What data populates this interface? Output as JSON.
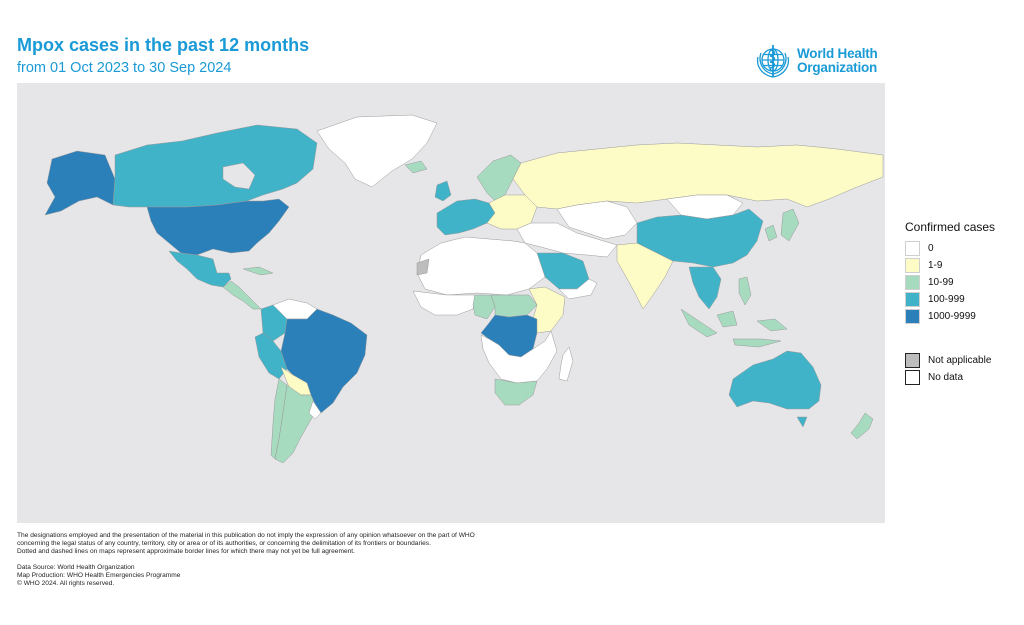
{
  "header": {
    "title": "Mpox cases in the past 12 months",
    "subtitle": "from 01 Oct 2023 to 30 Sep 2024"
  },
  "logo": {
    "line1": "World Health",
    "line2": "Organization",
    "icon": "who-emblem-icon",
    "color": "#1a9ad6"
  },
  "colors": {
    "ocean": "#e6e6e9",
    "c0": "#ffffff",
    "c1_9": "#fdfcc6",
    "c10_99": "#a6dbc0",
    "c100_999": "#40b3c8",
    "c1000_9999": "#2c80ba",
    "not_applicable": "#bdbdbd",
    "no_data": "#ffffff"
  },
  "legend": {
    "title": "Confirmed cases",
    "items": [
      {
        "label": "0",
        "color": "#ffffff"
      },
      {
        "label": "1-9",
        "color": "#fdfcc6"
      },
      {
        "label": "10-99",
        "color": "#a6dbc0"
      },
      {
        "label": "100-999",
        "color": "#40b3c8"
      },
      {
        "label": "1000-9999",
        "color": "#2c80ba"
      }
    ],
    "not_applicable": "Not applicable",
    "no_data": "No data"
  },
  "footer": {
    "disclaimer_1": "The designations employed and the presentation of the material in this publication do not imply the expression of any opinion whatsoever on the part of WHO",
    "disclaimer_2": "concerning the legal status of any country, territory, city or area or of its authorities, or concerning the delimitation of its frontiers or boundaries.",
    "disclaimer_3": "Dotted and dashed lines on maps represent approximate border lines for which there may not yet be full agreement.",
    "source": "Data Source: World Health Organization",
    "production": "Map Production: WHO Health Emergencies Programme",
    "copyright": "© WHO 2024. All rights reserved."
  },
  "map_regions": [
    {
      "name": "greenland",
      "category": "0"
    },
    {
      "name": "canada",
      "category": "100-999"
    },
    {
      "name": "alaska",
      "category": "1000-9999"
    },
    {
      "name": "united-states",
      "category": "1000-9999"
    },
    {
      "name": "mexico",
      "category": "100-999"
    },
    {
      "name": "central-america",
      "category": "10-99"
    },
    {
      "name": "colombia",
      "category": "100-999"
    },
    {
      "name": "venezuela",
      "category": "0"
    },
    {
      "name": "peru",
      "category": "100-999"
    },
    {
      "name": "brazil",
      "category": "1000-9999"
    },
    {
      "name": "bolivia",
      "category": "1-9"
    },
    {
      "name": "argentina",
      "category": "10-99"
    },
    {
      "name": "chile",
      "category": "10-99"
    },
    {
      "name": "uruguay",
      "category": "0"
    },
    {
      "name": "russia",
      "category": "1-9"
    },
    {
      "name": "scandinavia",
      "category": "10-99"
    },
    {
      "name": "western-europe",
      "category": "100-999"
    },
    {
      "name": "eastern-europe",
      "category": "1-9"
    },
    {
      "name": "central-asia",
      "category": "0"
    },
    {
      "name": "middle-east",
      "category": "0"
    },
    {
      "name": "saudi-arabia",
      "category": "100-999"
    },
    {
      "name": "india",
      "category": "1-9"
    },
    {
      "name": "china",
      "category": "100-999"
    },
    {
      "name": "mongolia",
      "category": "0"
    },
    {
      "name": "korea-japan",
      "category": "10-99"
    },
    {
      "name": "southeast-asia",
      "category": "100-999"
    },
    {
      "name": "indonesia",
      "category": "10-99"
    },
    {
      "name": "philippines",
      "category": "10-99"
    },
    {
      "name": "australia",
      "category": "100-999"
    },
    {
      "name": "new-zealand",
      "category": "10-99"
    },
    {
      "name": "north-africa",
      "category": "0"
    },
    {
      "name": "west-africa",
      "category": "0"
    },
    {
      "name": "nigeria",
      "category": "10-99"
    },
    {
      "name": "dr-congo",
      "category": "1000-9999"
    },
    {
      "name": "central-africa",
      "category": "10-99"
    },
    {
      "name": "east-africa",
      "category": "1-9"
    },
    {
      "name": "southern-africa",
      "category": "0"
    },
    {
      "name": "south-africa",
      "category": "10-99"
    },
    {
      "name": "madagascar",
      "category": "0"
    },
    {
      "name": "western-sahara",
      "category": "n/a"
    }
  ]
}
